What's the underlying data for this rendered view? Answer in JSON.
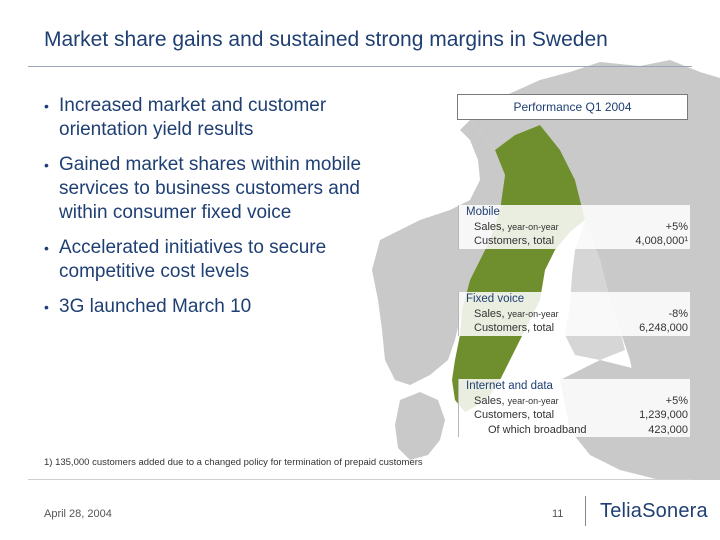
{
  "title": "Market share gains and sustained strong margins in Sweden",
  "bullets": [
    "Increased market and customer orientation yield results",
    "Gained market shares within mobile services to business customers and within consumer fixed voice",
    "Accelerated initiatives to secure competitive cost levels",
    "3G launched March 10"
  ],
  "bullet_glyph": "•",
  "performance": {
    "heading": "Performance Q1 2004",
    "mobile": {
      "title": "Mobile",
      "sales_label": "Sales,",
      "sales_suffix": "year-on-year",
      "sales_value": "+5%",
      "customers_label": "Customers, total",
      "customers_value": "4,008,000¹"
    },
    "fixed_voice": {
      "title": "Fixed voice",
      "sales_label": "Sales,",
      "sales_suffix": "year-on-year",
      "sales_value": "-8%",
      "customers_label": "Customers, total",
      "customers_value": "6,248,000"
    },
    "internet": {
      "title": "Internet and data",
      "sales_label": "Sales,",
      "sales_suffix": "year-on-year",
      "sales_value": "+5%",
      "customers_label": "Customers, total",
      "customers_value": "1,239,000",
      "broadband_label": "Of which broadband",
      "broadband_value": "423,000"
    }
  },
  "footnote": "1) 135,000 customers added due to a changed policy for termination of prepaid customers",
  "footer": {
    "date": "April 28, 2004",
    "page": "11",
    "logo": "TeliaSonera"
  },
  "colors": {
    "title": "#1f3f73",
    "map_land": "#c9c9c9",
    "sweden_green": "#6f8f2e",
    "sea": "#ffffff"
  }
}
